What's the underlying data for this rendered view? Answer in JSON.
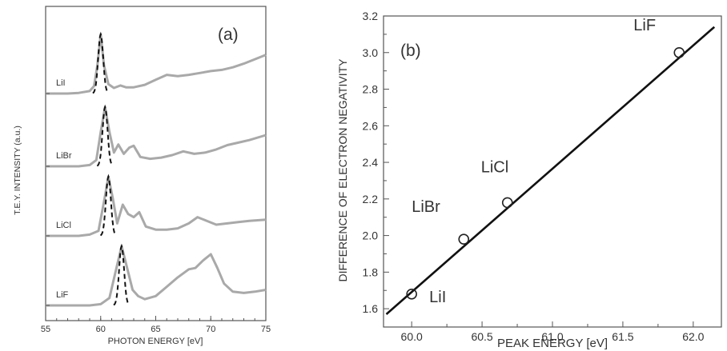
{
  "chart_data": [
    {
      "type": "line",
      "panel_label": "(a)",
      "xlabel": "PHOTON ENERGY [eV]",
      "ylabel": "T.E.Y. INTENSITY (a.u.)",
      "xlim": [
        55,
        75
      ],
      "xticks": [
        "55",
        "60",
        "65",
        "70",
        "75"
      ],
      "y_tick_labels": "none",
      "series": [
        {
          "name": "LiI",
          "offset": 3,
          "peak": 60.0,
          "x": [
            55,
            56,
            57,
            58,
            59,
            59.4,
            59.7,
            60.0,
            60.3,
            60.7,
            61.2,
            61.8,
            62.3,
            63,
            64,
            65,
            66,
            67,
            68,
            69,
            70,
            71,
            72,
            73,
            74,
            75
          ],
          "y": [
            0.0,
            0.0,
            0.0,
            0.01,
            0.04,
            0.12,
            0.45,
            0.95,
            0.45,
            0.15,
            0.09,
            0.13,
            0.1,
            0.1,
            0.14,
            0.22,
            0.3,
            0.28,
            0.3,
            0.33,
            0.36,
            0.38,
            0.42,
            0.48,
            0.55,
            0.62
          ]
        },
        {
          "name": "LiBr",
          "offset": 2,
          "peak": 60.4,
          "x": [
            55,
            56,
            57,
            58,
            59,
            59.6,
            60.0,
            60.4,
            60.8,
            61.2,
            61.6,
            62.1,
            62.6,
            63.0,
            63.6,
            64.5,
            65.5,
            66.5,
            67.5,
            68.5,
            69.5,
            70.5,
            71.5,
            72.5,
            73.5,
            75
          ],
          "y": [
            0.0,
            0.0,
            0.0,
            0.0,
            0.02,
            0.1,
            0.55,
            0.95,
            0.55,
            0.22,
            0.35,
            0.2,
            0.3,
            0.33,
            0.15,
            0.12,
            0.14,
            0.18,
            0.24,
            0.2,
            0.22,
            0.27,
            0.34,
            0.38,
            0.42,
            0.5
          ]
        },
        {
          "name": "LiCl",
          "offset": 1,
          "peak": 60.7,
          "x": [
            55,
            56,
            57,
            58,
            59,
            59.8,
            60.3,
            60.7,
            61.1,
            61.5,
            62.0,
            62.5,
            63.0,
            63.5,
            64.1,
            65.0,
            66.0,
            67.0,
            68.0,
            68.8,
            69.5,
            70.5,
            71.5,
            72.5,
            73.5,
            75
          ],
          "y": [
            0.0,
            0.0,
            0.0,
            0.0,
            0.02,
            0.08,
            0.55,
            0.95,
            0.6,
            0.2,
            0.5,
            0.35,
            0.3,
            0.38,
            0.15,
            0.1,
            0.1,
            0.12,
            0.2,
            0.3,
            0.25,
            0.18,
            0.2,
            0.22,
            0.24,
            0.26
          ]
        },
        {
          "name": "LiF",
          "offset": 0,
          "peak": 61.9,
          "x": [
            55,
            56,
            57,
            58,
            59,
            60,
            60.8,
            61.3,
            61.9,
            62.4,
            62.9,
            63.4,
            64.0,
            65.0,
            66.0,
            67.0,
            68.0,
            68.6,
            69.3,
            70.0,
            70.6,
            71.2,
            72.0,
            73.0,
            74.0,
            75
          ],
          "y": [
            0.0,
            0.0,
            0.0,
            0.0,
            0.0,
            0.02,
            0.12,
            0.5,
            0.95,
            0.6,
            0.25,
            0.15,
            0.1,
            0.15,
            0.3,
            0.45,
            0.58,
            0.6,
            0.72,
            0.82,
            0.6,
            0.35,
            0.22,
            0.2,
            0.22,
            0.25
          ]
        }
      ]
    },
    {
      "type": "scatter",
      "panel_label": "(b)",
      "xlabel": "PEAK ENERGY [eV]",
      "ylabel": "DIFFERENCE OF ELECTRON NEGATIVITY",
      "xlim": [
        59.8,
        62.2
      ],
      "ylim": [
        1.5,
        3.2
      ],
      "xticks": [
        "60.0",
        "60.5",
        "61.0",
        "61.5",
        "62.0"
      ],
      "yticks": [
        "1.6",
        "1.8",
        "2.0",
        "2.2",
        "2.4",
        "2.6",
        "2.8",
        "3.0",
        "3.2"
      ],
      "points": [
        {
          "label": "LiI",
          "x": 60.0,
          "y": 1.68
        },
        {
          "label": "LiBr",
          "x": 60.37,
          "y": 1.98
        },
        {
          "label": "LiCl",
          "x": 60.68,
          "y": 2.18
        },
        {
          "label": "LiF",
          "x": 61.9,
          "y": 3.0
        }
      ],
      "fit_line": {
        "x": [
          59.82,
          62.15
        ],
        "y": [
          1.57,
          3.14
        ]
      }
    }
  ]
}
